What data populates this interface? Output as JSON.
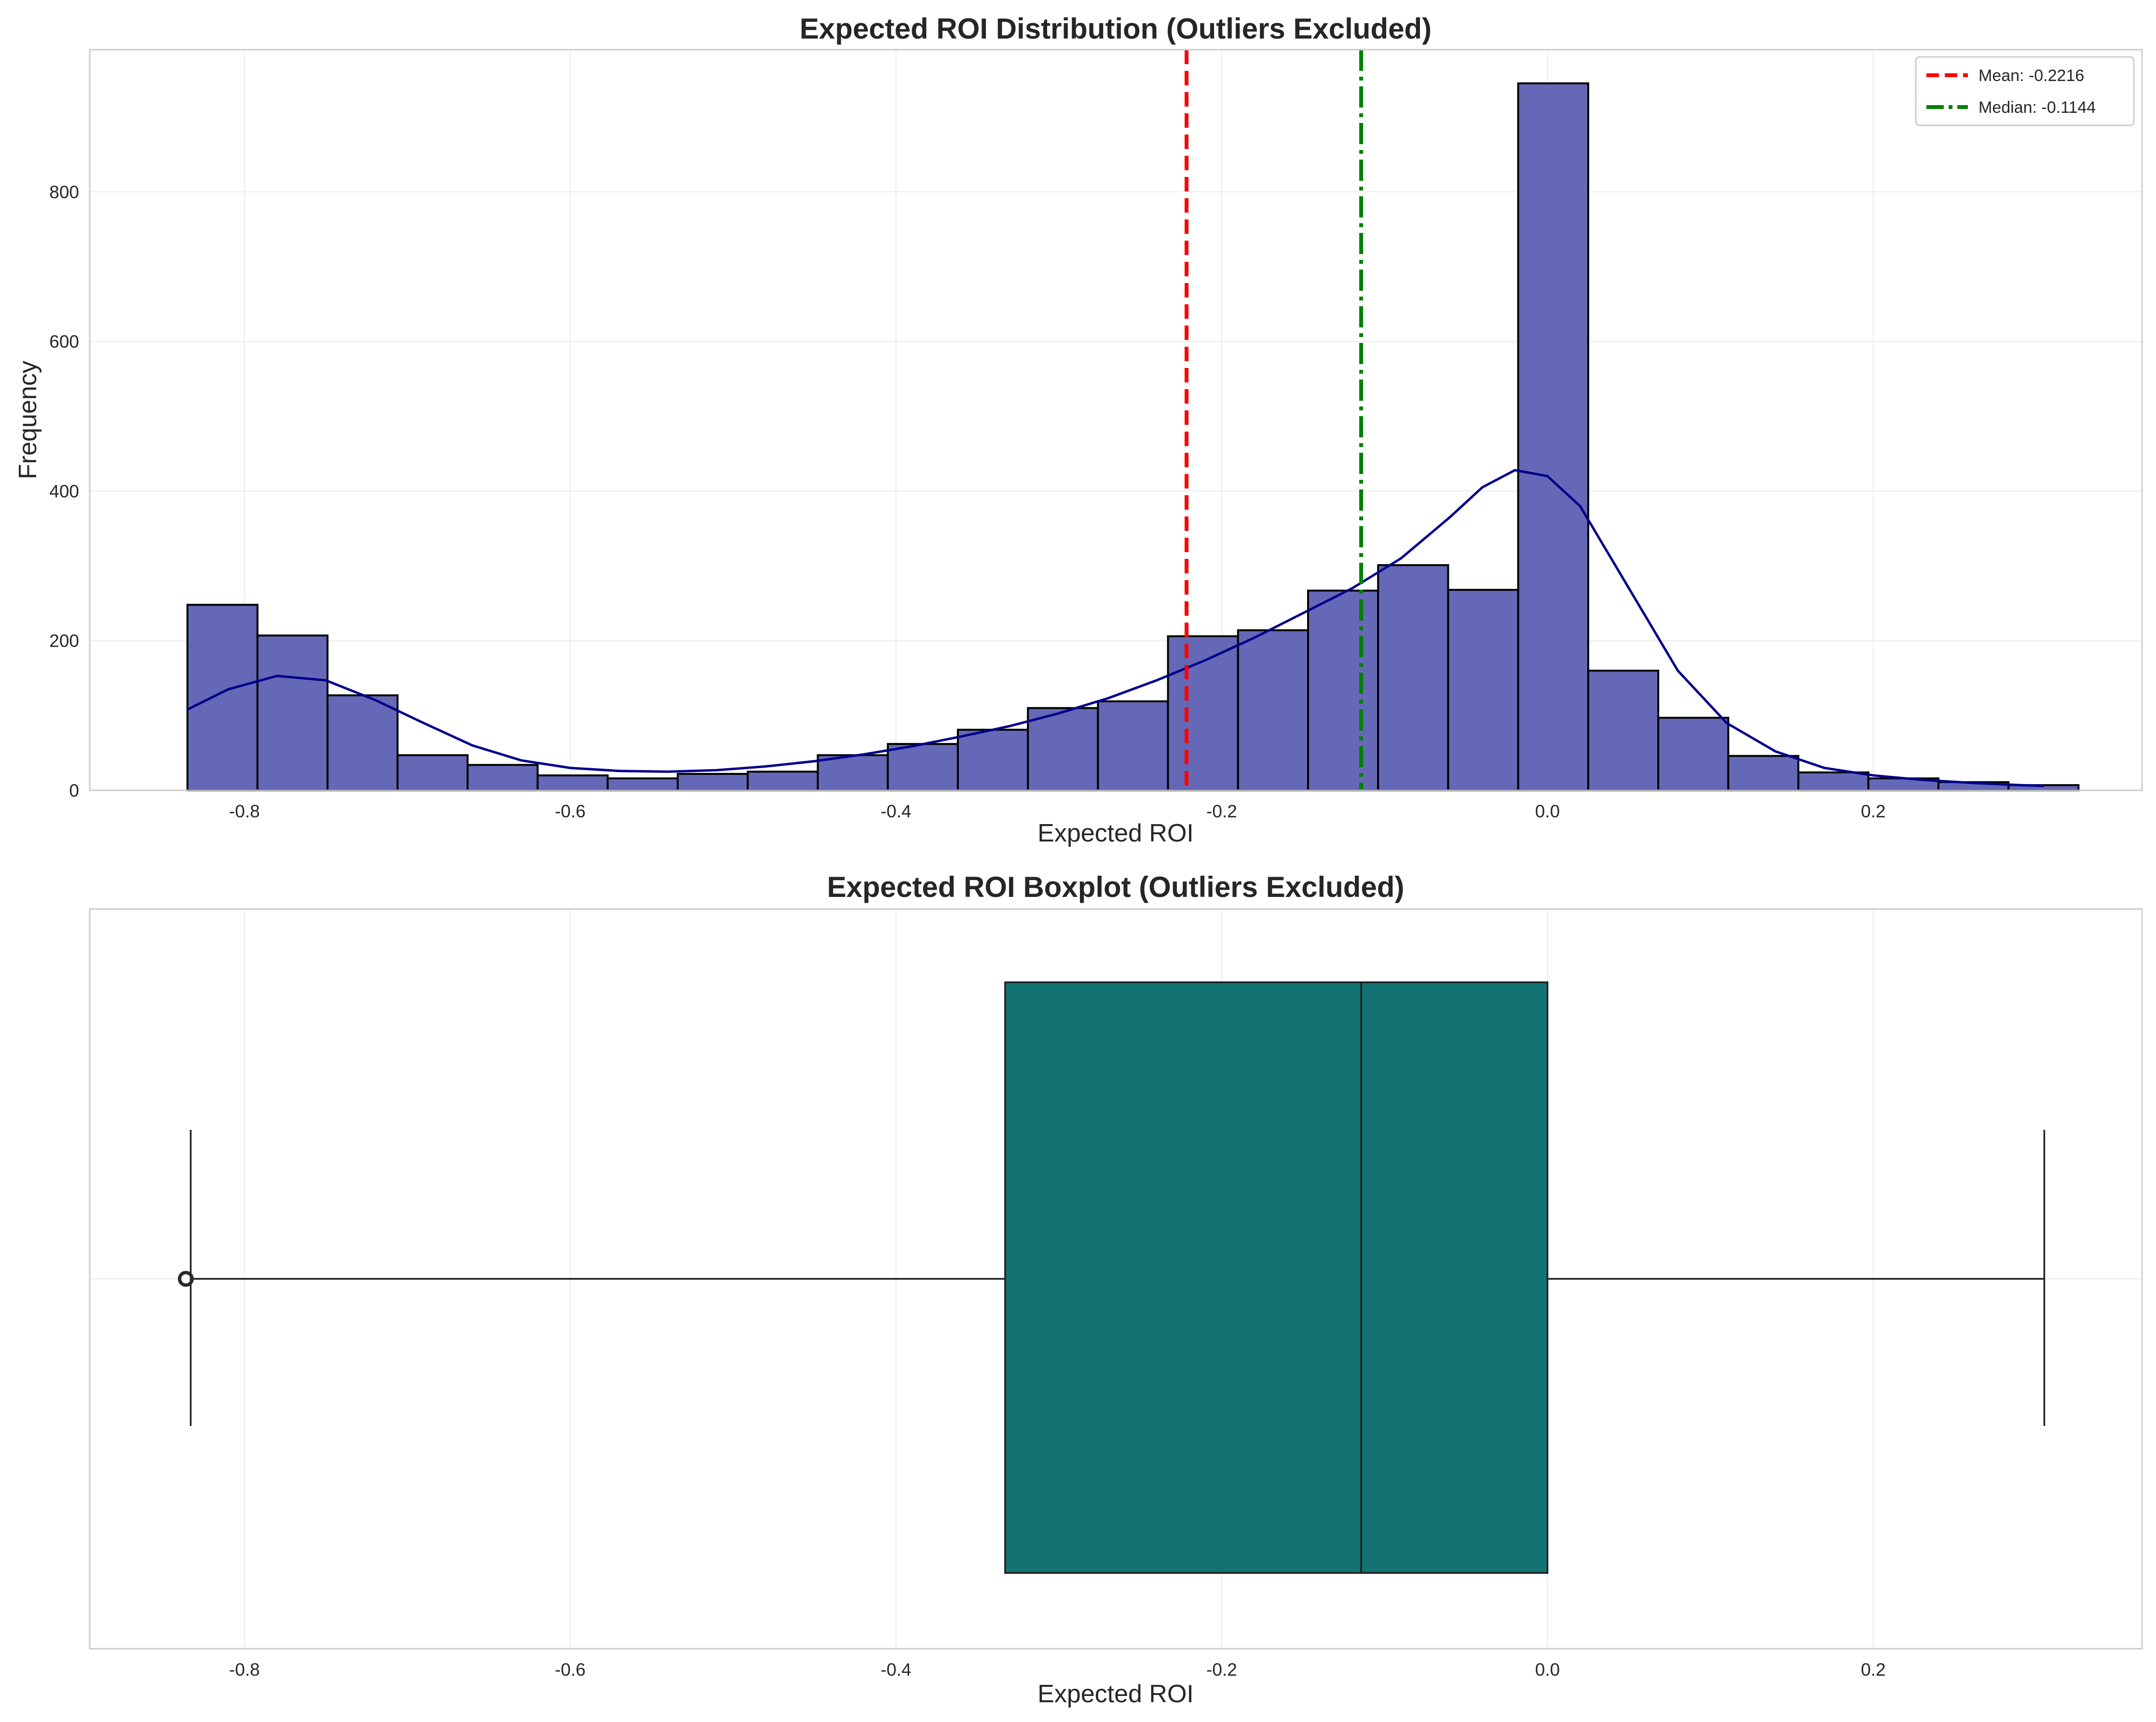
{
  "chart_data": [
    {
      "type": "bar",
      "title": "Expected ROI Distribution (Outliers Excluded)",
      "xlabel": "Expected ROI",
      "ylabel": "Frequency",
      "xlim": [
        -0.895,
        0.365
      ],
      "ylim": [
        0,
        990
      ],
      "xticks": [
        -0.8,
        -0.6,
        -0.4,
        -0.2,
        0.0,
        0.2
      ],
      "xtick_labels": [
        "-0.8",
        "-0.6",
        "-0.4",
        "-0.2",
        "0.0",
        "0.2"
      ],
      "yticks": [
        0,
        200,
        400,
        600,
        800
      ],
      "ytick_labels": [
        "0",
        "200",
        "400",
        "600",
        "800"
      ],
      "grid": true,
      "legend_position": "top-right",
      "bin_edges": [
        -0.835,
        -0.792,
        -0.749,
        -0.706,
        -0.663,
        -0.62,
        -0.577,
        -0.534,
        -0.491,
        -0.448,
        -0.405,
        -0.362,
        -0.319,
        -0.276,
        -0.233,
        -0.19,
        -0.147,
        -0.104,
        -0.061,
        -0.018,
        0.025,
        0.068,
        0.111,
        0.154,
        0.197,
        0.24,
        0.283,
        0.326
      ],
      "counts": [
        248,
        207,
        127,
        47,
        34,
        20,
        16,
        22,
        25,
        47,
        62,
        81,
        110,
        119,
        206,
        214,
        267,
        301,
        268,
        945,
        160,
        97,
        46,
        24,
        16,
        11,
        7
      ],
      "kde": [
        [
          -0.835,
          108
        ],
        [
          -0.81,
          135
        ],
        [
          -0.78,
          153
        ],
        [
          -0.75,
          147
        ],
        [
          -0.72,
          121
        ],
        [
          -0.69,
          90
        ],
        [
          -0.66,
          60
        ],
        [
          -0.63,
          40
        ],
        [
          -0.6,
          30
        ],
        [
          -0.57,
          26
        ],
        [
          -0.54,
          25
        ],
        [
          -0.51,
          27
        ],
        [
          -0.48,
          32
        ],
        [
          -0.45,
          39
        ],
        [
          -0.42,
          48
        ],
        [
          -0.39,
          59
        ],
        [
          -0.36,
          72
        ],
        [
          -0.33,
          86
        ],
        [
          -0.3,
          103
        ],
        [
          -0.27,
          123
        ],
        [
          -0.24,
          147
        ],
        [
          -0.21,
          174
        ],
        [
          -0.18,
          204
        ],
        [
          -0.15,
          237
        ],
        [
          -0.12,
          270
        ],
        [
          -0.09,
          310
        ],
        [
          -0.06,
          365
        ],
        [
          -0.04,
          405
        ],
        [
          -0.02,
          428
        ],
        [
          0.0,
          420
        ],
        [
          0.02,
          380
        ],
        [
          0.05,
          270
        ],
        [
          0.08,
          160
        ],
        [
          0.11,
          90
        ],
        [
          0.14,
          52
        ],
        [
          0.17,
          30
        ],
        [
          0.2,
          20
        ],
        [
          0.23,
          14
        ],
        [
          0.26,
          10
        ],
        [
          0.29,
          7
        ],
        [
          0.305,
          6
        ]
      ],
      "series": [
        {
          "name": "Mean: -0.2216",
          "value": -0.2216,
          "color": "#ff0000",
          "style": "dashed"
        },
        {
          "name": "Median: -0.1144",
          "value": -0.1144,
          "color": "#008000",
          "style": "dashdot"
        }
      ],
      "bar_color": "#6568b6",
      "kde_color": "#00008b"
    },
    {
      "type": "boxplot",
      "title": "Expected ROI Boxplot (Outliers Excluded)",
      "xlabel": "Expected ROI",
      "xlim": [
        -0.895,
        0.365
      ],
      "xticks": [
        -0.8,
        -0.6,
        -0.4,
        -0.2,
        0.0,
        0.2
      ],
      "xtick_labels": [
        "-0.8",
        "-0.6",
        "-0.4",
        "-0.2",
        "0.0",
        "0.2"
      ],
      "grid": true,
      "whisker_low": -0.833,
      "q1": -0.333,
      "median": -0.1144,
      "q3": 0.0,
      "whisker_high": 0.305,
      "outliers": [
        -0.836
      ],
      "box_color": "#137272"
    }
  ]
}
